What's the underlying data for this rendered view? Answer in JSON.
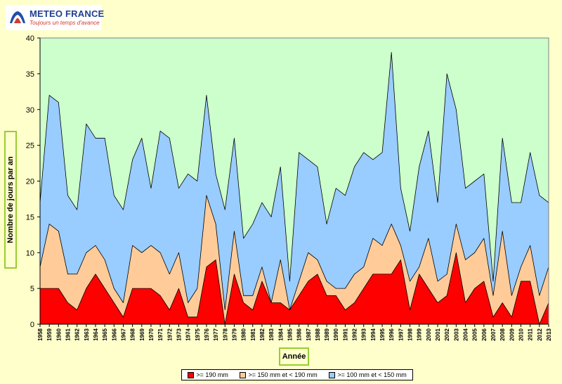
{
  "logo": {
    "name": "METEO FRANCE",
    "tagline": "Toujours un temps d'avance"
  },
  "chart_data": {
    "type": "area",
    "stacked": true,
    "title": "",
    "xlabel": "Année",
    "ylabel": "Nombre de jours par an",
    "ylim": [
      0,
      40
    ],
    "yticks": [
      0,
      5,
      10,
      15,
      20,
      25,
      30,
      35,
      40
    ],
    "grid": false,
    "legend_position": "bottom",
    "plot_background": "#CCFFCC",
    "page_background": "#FFFFCC",
    "x": [
      "1958",
      "1959",
      "1960",
      "1961",
      "1962",
      "1963",
      "1964",
      "1965",
      "1966",
      "1967",
      "1968",
      "1969",
      "1970",
      "1971",
      "1972",
      "1973",
      "1974",
      "1975",
      "1976",
      "1977",
      "1978",
      "1979",
      "1980",
      "1981",
      "1982",
      "1983",
      "1984",
      "1985",
      "1986",
      "1987",
      "1988",
      "1989",
      "1990",
      "1991",
      "1992",
      "1993",
      "1994",
      "1995",
      "1996",
      "1997",
      "1998",
      "1999",
      "2000",
      "2001",
      "2002",
      "2003",
      "2004",
      "2005",
      "2006",
      "2007",
      "2008",
      "2009",
      "2010",
      "2011",
      "2012",
      "2013"
    ],
    "series": [
      {
        "name": ">= 190 mm",
        "color": "#FF0000",
        "values": [
          5,
          5,
          5,
          3,
          2,
          5,
          7,
          5,
          3,
          1,
          5,
          5,
          5,
          4,
          2,
          5,
          1,
          1,
          8,
          9,
          0,
          7,
          3,
          2,
          6,
          3,
          3,
          2,
          4,
          6,
          7,
          4,
          4,
          2,
          3,
          5,
          7,
          7,
          7,
          9,
          2,
          7,
          5,
          3,
          4,
          10,
          3,
          5,
          6,
          1,
          3,
          1,
          6,
          6,
          0,
          3
        ]
      },
      {
        "name": ">= 150 mm et < 190 mm",
        "color": "#FFCC99",
        "cumulative": [
          8,
          14,
          13,
          7,
          7,
          10,
          11,
          9,
          5,
          3,
          11,
          10,
          11,
          10,
          7,
          10,
          3,
          5,
          18,
          14,
          2,
          13,
          4,
          4,
          8,
          3,
          9,
          2,
          6,
          10,
          9,
          6,
          5,
          5,
          7,
          8,
          12,
          11,
          14,
          11,
          6,
          8,
          12,
          6,
          7,
          14,
          9,
          10,
          12,
          4,
          13,
          4,
          8,
          11,
          4,
          8
        ],
        "values": [
          3,
          9,
          8,
          4,
          5,
          5,
          4,
          4,
          2,
          2,
          6,
          5,
          6,
          6,
          5,
          5,
          2,
          4,
          10,
          5,
          2,
          6,
          1,
          2,
          2,
          0,
          6,
          0,
          2,
          4,
          2,
          2,
          1,
          3,
          4,
          3,
          5,
          4,
          7,
          2,
          4,
          1,
          7,
          3,
          3,
          4,
          6,
          5,
          6,
          3,
          10,
          3,
          2,
          5,
          4,
          5
        ]
      },
      {
        "name": ">= 100 mm et < 150 mm",
        "color": "#99CCFF",
        "cumulative": [
          17,
          32,
          31,
          18,
          16,
          28,
          26,
          26,
          18,
          16,
          23,
          26,
          19,
          27,
          26,
          19,
          21,
          20,
          32,
          21,
          16,
          26,
          12,
          14,
          17,
          15,
          22,
          6,
          24,
          23,
          22,
          14,
          19,
          18,
          22,
          24,
          23,
          24,
          38,
          19,
          13,
          22,
          27,
          17,
          35,
          30,
          19,
          20,
          21,
          6,
          26,
          17,
          17,
          24,
          18,
          17
        ],
        "values": [
          9,
          18,
          18,
          11,
          9,
          18,
          15,
          17,
          13,
          13,
          12,
          16,
          8,
          17,
          19,
          9,
          18,
          15,
          14,
          7,
          14,
          13,
          8,
          10,
          9,
          12,
          13,
          4,
          18,
          13,
          13,
          8,
          14,
          13,
          15,
          16,
          11,
          13,
          24,
          8,
          7,
          14,
          15,
          11,
          28,
          16,
          10,
          10,
          9,
          2,
          13,
          13,
          9,
          13,
          14,
          9
        ]
      }
    ]
  }
}
